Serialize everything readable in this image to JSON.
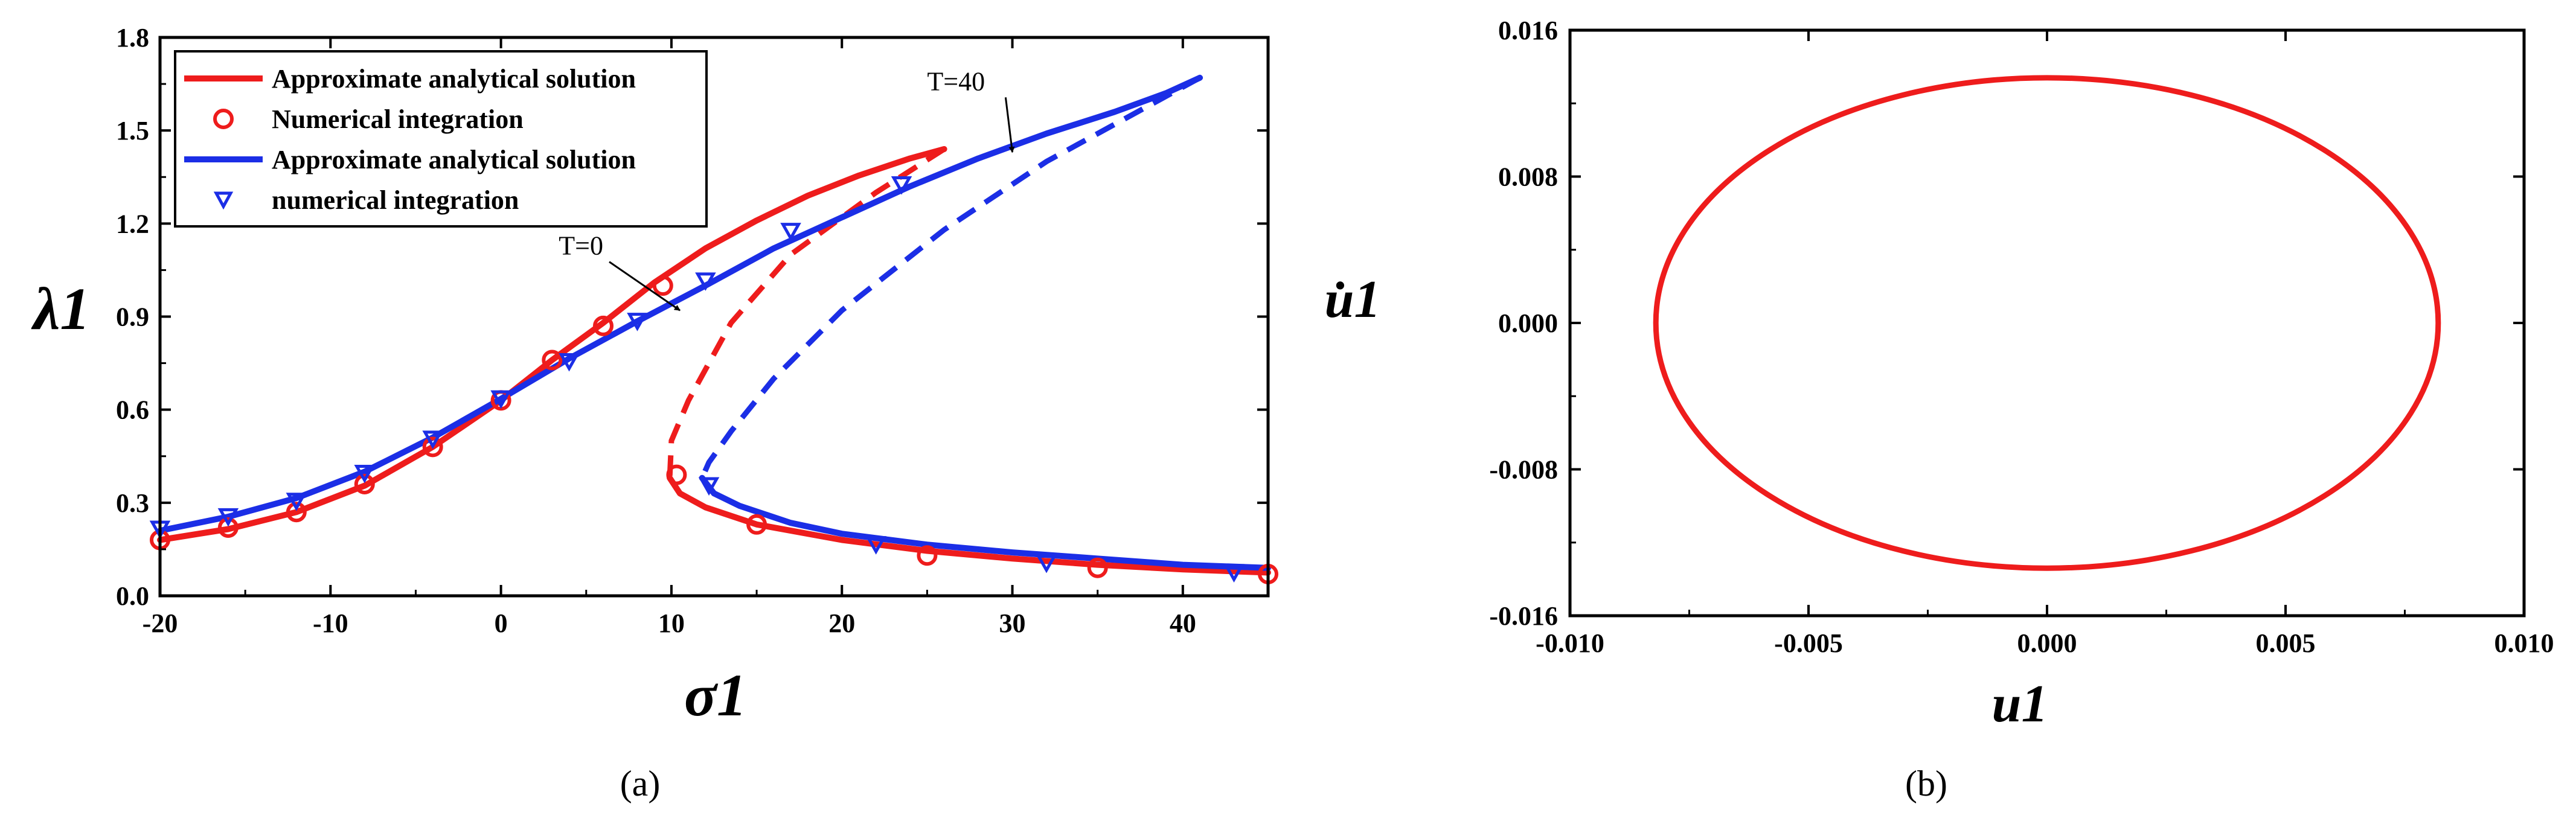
{
  "colors": {
    "red": "#ee1c1c",
    "blue": "#1b2ee6",
    "axis": "#000000"
  },
  "chart_data": [
    {
      "panel": "(a)",
      "type": "line",
      "xlabel": "σ1",
      "ylabel": "λ1",
      "xlim": [
        -20,
        45
      ],
      "ylim": [
        0.0,
        1.8
      ],
      "xticks": [
        "-20",
        "-10",
        "0",
        "10",
        "20",
        "30",
        "40"
      ],
      "yticks": [
        "0.0",
        "0.3",
        "0.6",
        "0.9",
        "1.2",
        "1.5",
        "1.8"
      ],
      "legend_position": "top-left",
      "legend": [
        "Approximate analytical solution",
        "Numerical integration",
        "Approximate analytical solution",
        "numerical integration"
      ],
      "annotations": [
        {
          "text": "T=0",
          "x": 6,
          "y": 1.1,
          "arrow_to": [
            10.5,
            0.92
          ]
        },
        {
          "text": "T=40",
          "x": 25,
          "y": 1.63,
          "arrow_to": [
            30,
            1.43
          ]
        }
      ],
      "series": [
        {
          "color": "red",
          "stable_upper": [
            [
              -20,
              0.18
            ],
            [
              -16,
              0.215
            ],
            [
              -12,
              0.27
            ],
            [
              -8,
              0.355
            ],
            [
              -4,
              0.48
            ],
            [
              0,
              0.63
            ],
            [
              3,
              0.76
            ],
            [
              6,
              0.88
            ],
            [
              9,
              1.01
            ],
            [
              12,
              1.12
            ],
            [
              15,
              1.21
            ],
            [
              18,
              1.29
            ],
            [
              21,
              1.355
            ],
            [
              24,
              1.41
            ],
            [
              26,
              1.44
            ]
          ],
          "unstable": [
            [
              26,
              1.44
            ],
            [
              22,
              1.3
            ],
            [
              17,
              1.1
            ],
            [
              13.5,
              0.88
            ],
            [
              11,
              0.63
            ],
            [
              10,
              0.5
            ],
            [
              9.9,
              0.38
            ]
          ],
          "stable_lower": [
            [
              9.9,
              0.38
            ],
            [
              10.5,
              0.33
            ],
            [
              12,
              0.285
            ],
            [
              15,
              0.23
            ],
            [
              20,
              0.18
            ],
            [
              25,
              0.145
            ],
            [
              30,
              0.12
            ],
            [
              35,
              0.1
            ],
            [
              40,
              0.085
            ],
            [
              45,
              0.075
            ]
          ],
          "markers": [
            [
              -20,
              0.18
            ],
            [
              -16,
              0.22
            ],
            [
              -12,
              0.27
            ],
            [
              -8,
              0.36
            ],
            [
              -4,
              0.48
            ],
            [
              0,
              0.63
            ],
            [
              3,
              0.76
            ],
            [
              6,
              0.87
            ],
            [
              9.5,
              1.0
            ],
            [
              10.3,
              0.39
            ],
            [
              15,
              0.23
            ],
            [
              25,
              0.13
            ],
            [
              35,
              0.09
            ],
            [
              45,
              0.07
            ]
          ]
        },
        {
          "color": "blue",
          "stable_upper": [
            [
              -20,
              0.21
            ],
            [
              -16,
              0.255
            ],
            [
              -12,
              0.315
            ],
            [
              -8,
              0.4
            ],
            [
              -4,
              0.51
            ],
            [
              0,
              0.635
            ],
            [
              4,
              0.765
            ],
            [
              8,
              0.885
            ],
            [
              12,
              1.0
            ],
            [
              16,
              1.12
            ],
            [
              20,
              1.22
            ],
            [
              24,
              1.32
            ],
            [
              28,
              1.41
            ],
            [
              32,
              1.49
            ],
            [
              36,
              1.56
            ],
            [
              39,
              1.62
            ],
            [
              41,
              1.67
            ]
          ],
          "unstable": [
            [
              41,
              1.67
            ],
            [
              38,
              1.58
            ],
            [
              32,
              1.4
            ],
            [
              26,
              1.18
            ],
            [
              20,
              0.92
            ],
            [
              16,
              0.7
            ],
            [
              13.5,
              0.53
            ],
            [
              12.2,
              0.43
            ],
            [
              11.8,
              0.38
            ]
          ],
          "stable_lower": [
            [
              11.8,
              0.38
            ],
            [
              12.5,
              0.33
            ],
            [
              14,
              0.29
            ],
            [
              17,
              0.235
            ],
            [
              20,
              0.2
            ],
            [
              25,
              0.165
            ],
            [
              30,
              0.14
            ],
            [
              35,
              0.12
            ],
            [
              40,
              0.1
            ],
            [
              45,
              0.09
            ]
          ],
          "markers": [
            [
              -20,
              0.22
            ],
            [
              -16,
              0.26
            ],
            [
              -12,
              0.31
            ],
            [
              -8,
              0.4
            ],
            [
              -4,
              0.51
            ],
            [
              0,
              0.64
            ],
            [
              4,
              0.76
            ],
            [
              8,
              0.89
            ],
            [
              12,
              1.02
            ],
            [
              17,
              1.18
            ],
            [
              23.5,
              1.33
            ],
            [
              12.2,
              0.36
            ],
            [
              22,
              0.17
            ],
            [
              32,
              0.11
            ],
            [
              43,
              0.08
            ]
          ]
        }
      ]
    },
    {
      "panel": "(b)",
      "type": "line",
      "xlabel": "u1",
      "ylabel": "u̇1",
      "xlim": [
        -0.01,
        0.01
      ],
      "ylim": [
        -0.016,
        0.016
      ],
      "xticks": [
        "-0.010",
        "-0.005",
        "0.000",
        "0.005",
        "0.010"
      ],
      "yticks": [
        "0.016",
        "0.008",
        "0.000",
        "-0.008",
        "-0.016"
      ],
      "series": [
        {
          "name": "",
          "color": "red",
          "shape": "ellipse",
          "center": [
            0.0,
            0.0
          ],
          "semi_x": 0.0082,
          "semi_y": 0.0134
        }
      ]
    }
  ]
}
